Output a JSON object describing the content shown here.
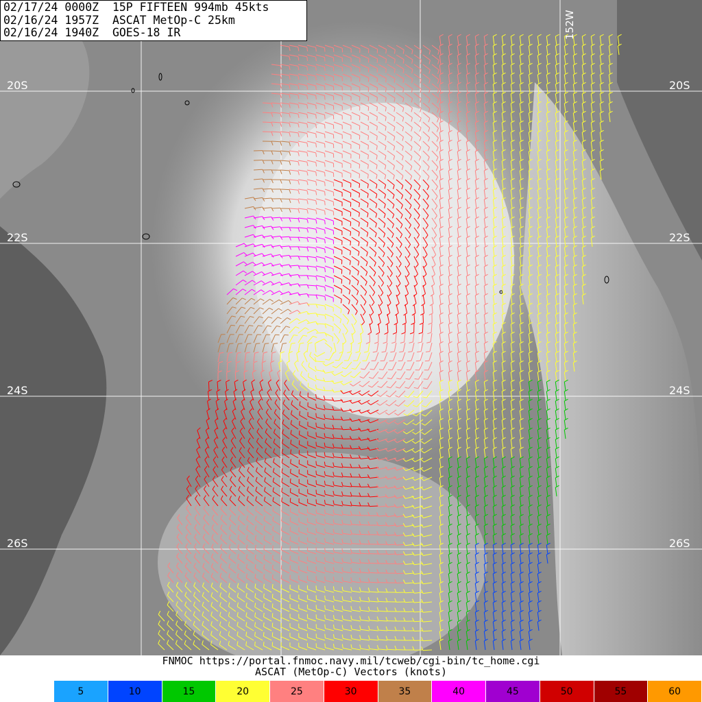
{
  "header": {
    "line1": "02/17/24 0000Z  15P FIFTEEN 994mb 45kts",
    "line2": "02/16/24 1957Z  ASCAT MetOp-C 25km",
    "line3": "02/16/24 1940Z  GOES-18 IR"
  },
  "latitude_labels": [
    "20S",
    "22S",
    "24S",
    "26S"
  ],
  "longitude_label": "152W",
  "footer": {
    "source": "FNMOC https://portal.fnmoc.navy.mil/tcweb/cgi-bin/tc_home.cgi",
    "product": "ASCAT (MetOp-C) Vectors (knots)"
  },
  "legend": [
    {
      "label": "5",
      "color": "#1aa3ff"
    },
    {
      "label": "10",
      "color": "#0044ff"
    },
    {
      "label": "15",
      "color": "#00c800"
    },
    {
      "label": "20",
      "color": "#ffff33"
    },
    {
      "label": "25",
      "color": "#ff8080"
    },
    {
      "label": "30",
      "color": "#ff0000"
    },
    {
      "label": "35",
      "color": "#c0804a"
    },
    {
      "label": "40",
      "color": "#ff00ff"
    },
    {
      "label": "45",
      "color": "#a000d0"
    },
    {
      "label": "50",
      "color": "#d00000"
    },
    {
      "label": "55",
      "color": "#a00000"
    },
    {
      "label": "60",
      "color": "#ff9900"
    }
  ]
}
